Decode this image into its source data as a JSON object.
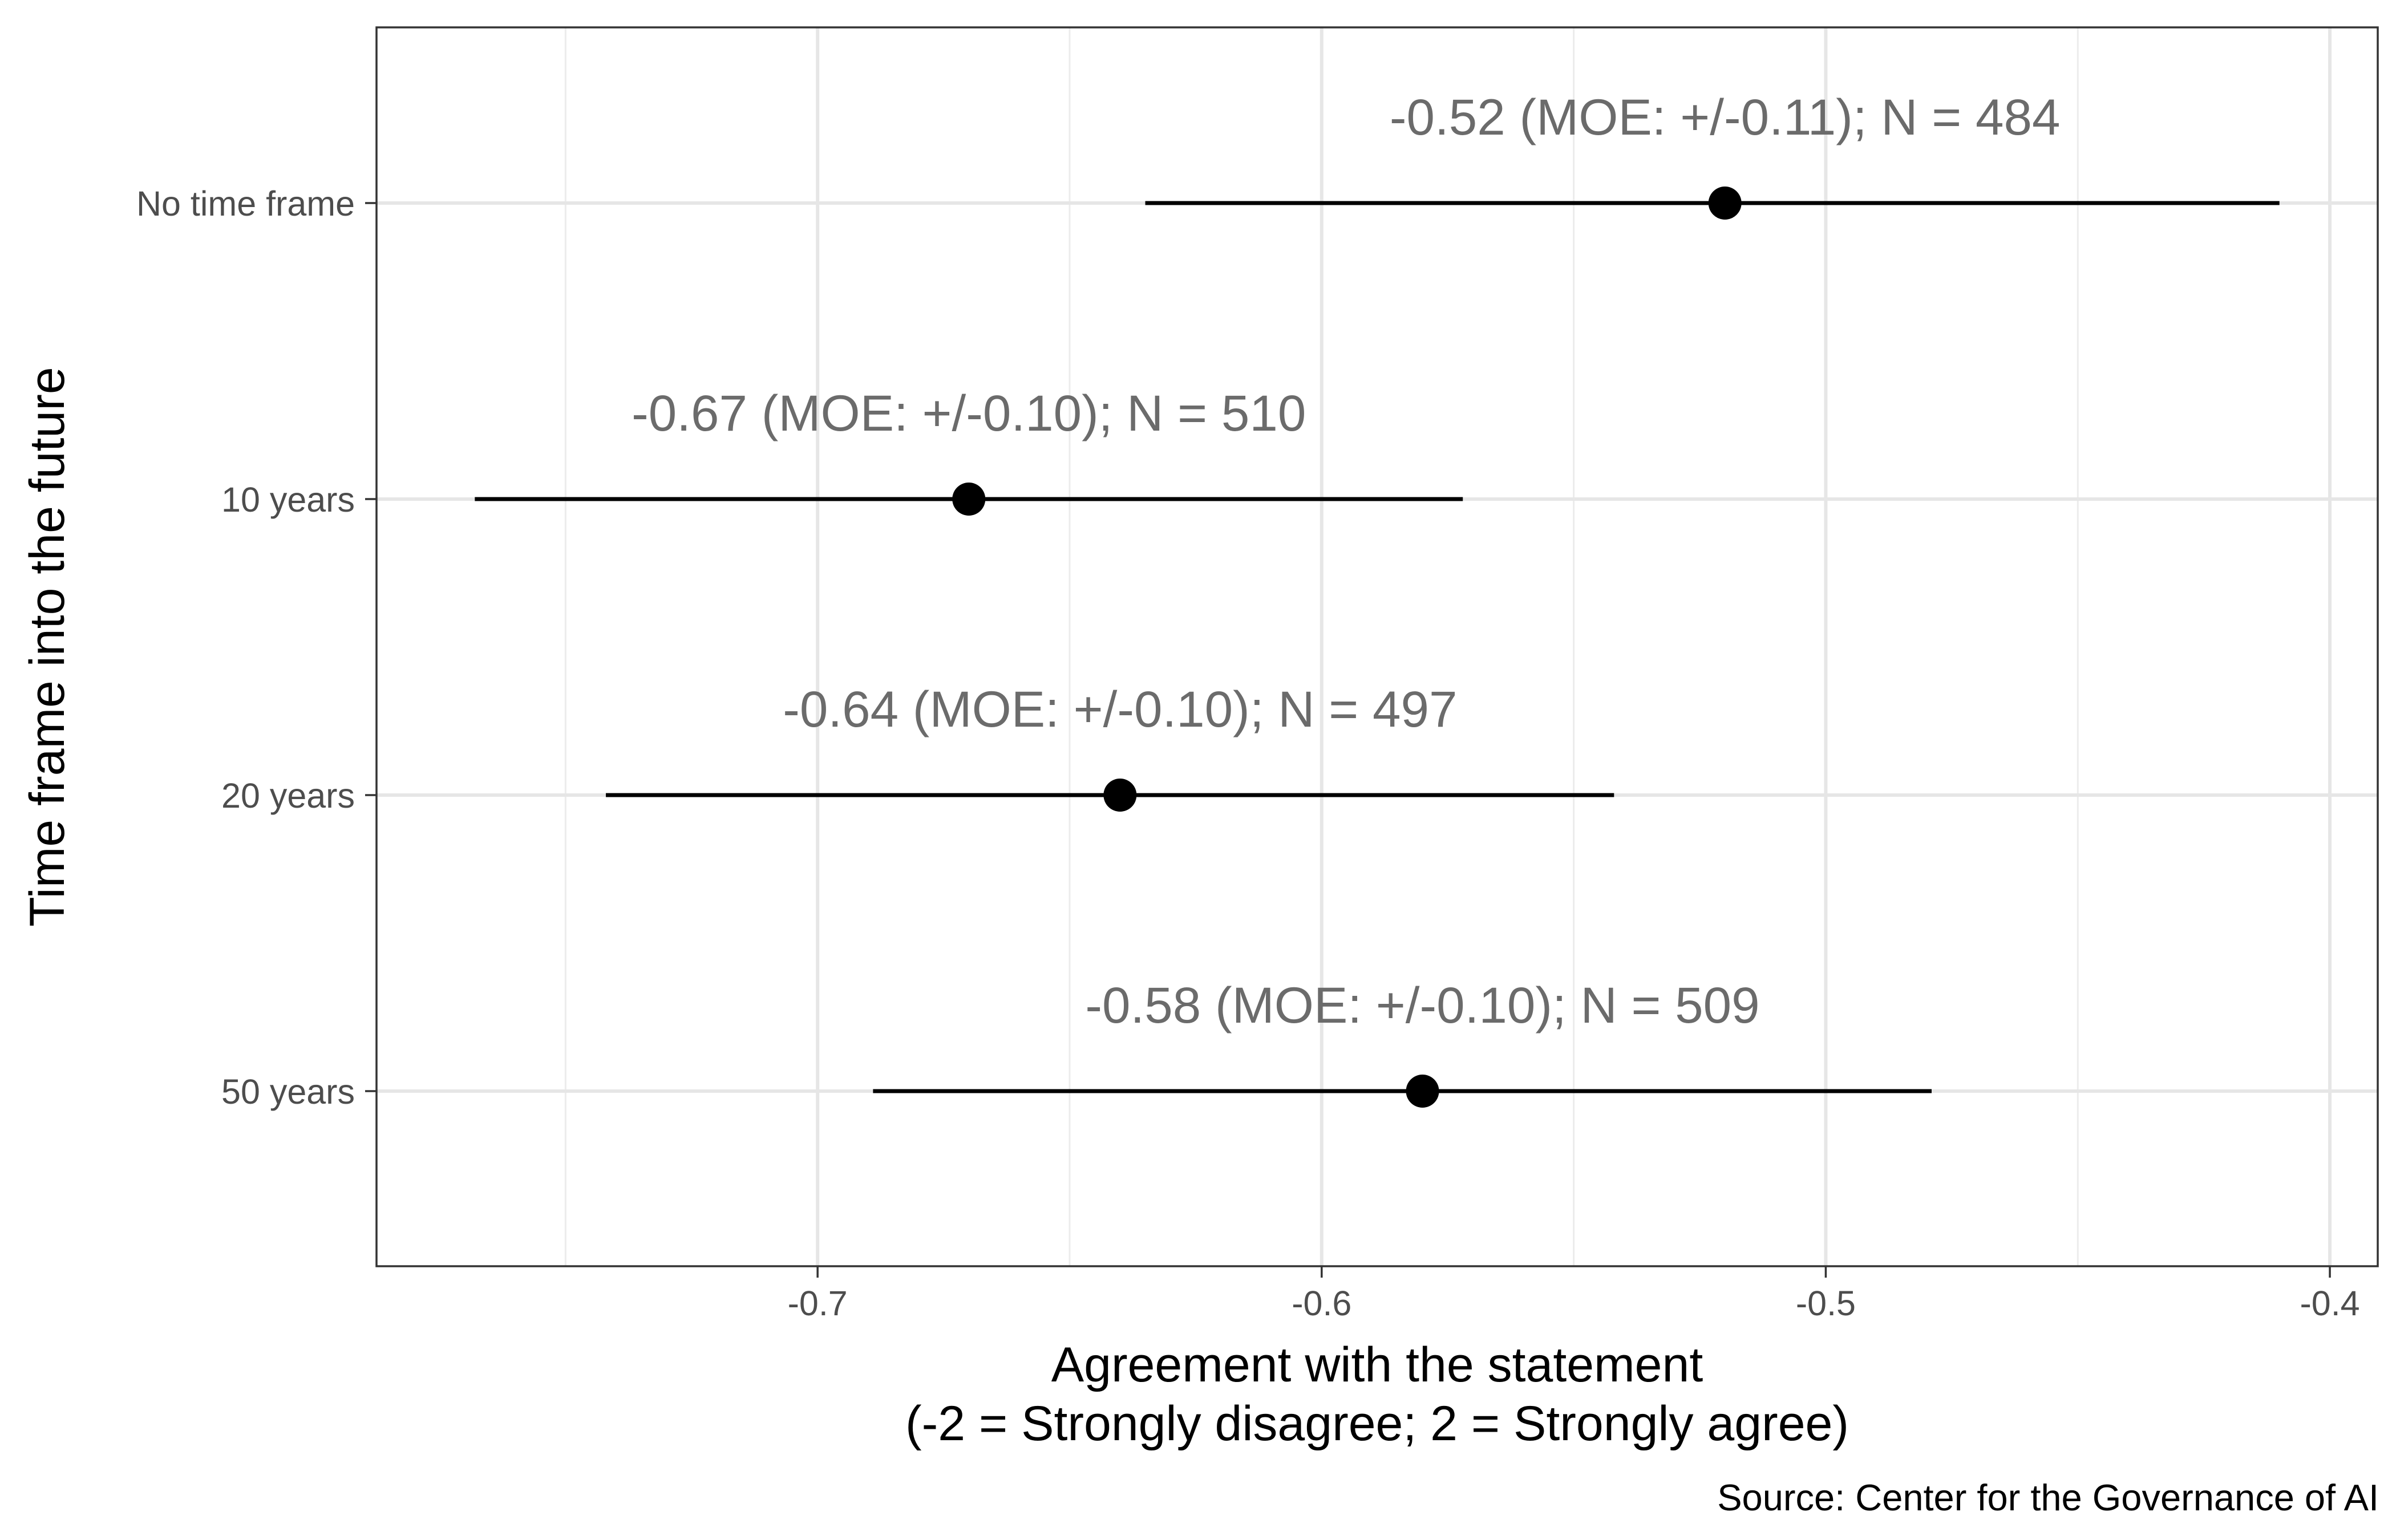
{
  "chart_data": {
    "type": "scatter",
    "subtype": "point-range",
    "orientation": "horizontal",
    "categories": [
      "No time frame",
      "10 years",
      "20 years",
      "50 years"
    ],
    "series": [
      {
        "values": [
          -0.52,
          -0.67,
          -0.64,
          -0.58
        ],
        "lower": [
          -0.635,
          -0.768,
          -0.742,
          -0.689
        ],
        "upper": [
          -0.41,
          -0.572,
          -0.542,
          -0.479
        ],
        "labels": [
          "-0.52 (MOE: +/-0.11); N = 484",
          "-0.67 (MOE: +/-0.10); N = 510",
          "-0.64 (MOE: +/-0.10); N = 497",
          "-0.58 (MOE: +/-0.10); N = 509"
        ]
      }
    ],
    "xlabel": "Agreement with the statement",
    "xlabel_line2": "(-2 = Strongly disagree; 2 = Strongly agree)",
    "ylabel": "Time frame into the future",
    "xlim": [
      -0.7875,
      -0.3905
    ],
    "xticks": [
      -0.7,
      -0.6,
      -0.5,
      -0.4
    ],
    "xtick_labels": [
      "-0.7",
      "-0.6",
      "-0.5",
      "-0.4"
    ],
    "grid": true,
    "caption": "Source: Center for the Governance of AI",
    "colors": {
      "point": "#000000",
      "label": "#6b6b6b",
      "grid": "#e6e6e6",
      "frame": "#333333"
    }
  }
}
